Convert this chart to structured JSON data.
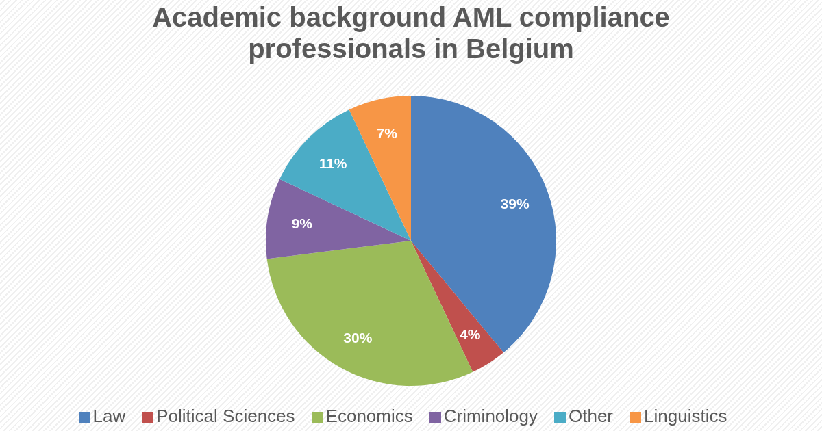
{
  "chart_data": {
    "type": "pie",
    "title": "Academic background AML compliance professionals in Belgium",
    "categories": [
      "Law",
      "Political Sciences",
      "Economics",
      "Criminology",
      "Other",
      "Linguistics"
    ],
    "values": [
      39,
      4,
      30,
      9,
      11,
      7
    ],
    "colors": [
      "#4f81bd",
      "#c0504d",
      "#9bbb59",
      "#8064a2",
      "#4bacc6",
      "#f79646"
    ],
    "value_labels": [
      "39%",
      "4%",
      "30%",
      "9%",
      "11%",
      "7%"
    ],
    "legend": "bottom"
  }
}
